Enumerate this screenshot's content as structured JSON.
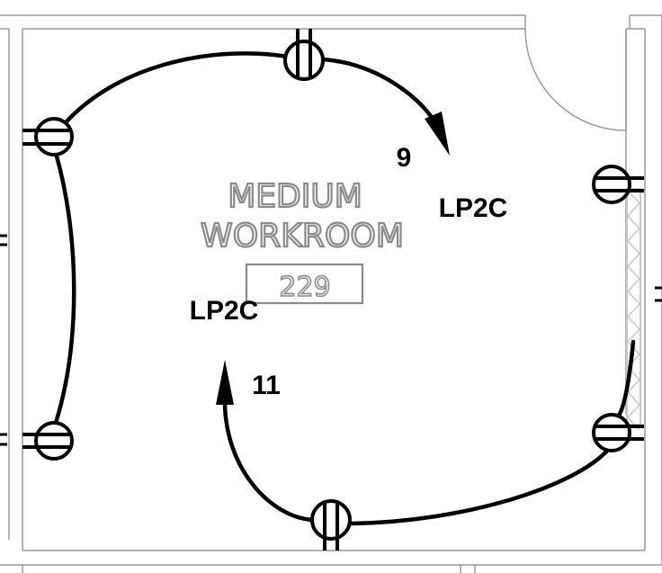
{
  "room": {
    "name_line1": "MEDIUM",
    "name_line2": "WORKROOM",
    "number": "229"
  },
  "circuits": {
    "upper": {
      "number": "9",
      "panel": "LP2C"
    },
    "lower": {
      "number": "11",
      "panel": "LP2C"
    }
  },
  "colors": {
    "wire": "#000000",
    "wall": "#9a9a9a",
    "room_text": "#8a8a8a",
    "hatch": "#c8c8c8"
  },
  "symbols": [
    "duplex-receptacle-icon",
    "home-run-arrow-icon"
  ]
}
